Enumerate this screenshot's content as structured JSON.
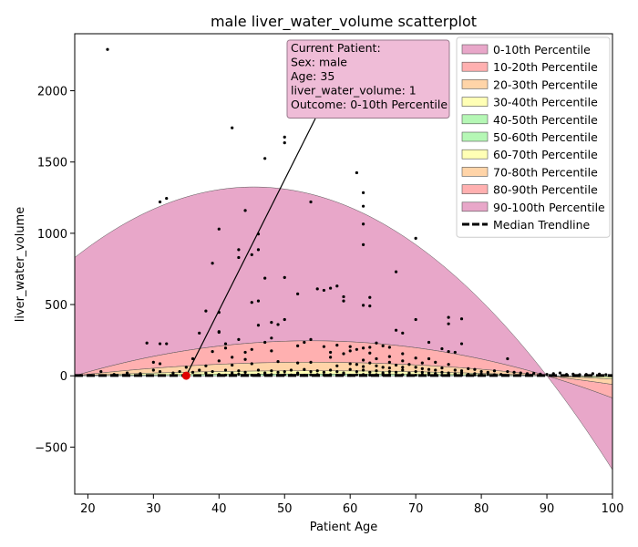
{
  "chart_data": {
    "type": "scatter",
    "title": "male liver_water_volume scatterplot",
    "xlabel": "Patient Age",
    "ylabel": "liver_water_volume",
    "xlim": [
      18,
      100
    ],
    "ylim": [
      -830,
      2400
    ],
    "xticks": [
      20,
      30,
      40,
      50,
      60,
      70,
      80,
      90,
      100
    ],
    "yticks": [
      -500,
      0,
      500,
      1000,
      1500,
      2000
    ],
    "ytick_labels": [
      "−500",
      "0",
      "500",
      "1000",
      "1500",
      "2000"
    ],
    "grid": false,
    "legend_position": "top-right",
    "percentile_bands": [
      {
        "name": "0-10th Percentile",
        "color": "#e8a7c9",
        "upper": {
          "x": [
            18,
            45,
            90,
            100
          ],
          "y": [
            0,
            0,
            0,
            0
          ]
        }
      },
      {
        "name": "10-20th Percentile",
        "color": "#ffb0b0"
      },
      {
        "name": "20-30th Percentile",
        "color": "#ffd4a8"
      },
      {
        "name": "30-40th Percentile",
        "color": "#ffffb5"
      },
      {
        "name": "40-50th Percentile",
        "color": "#b5f7b5"
      },
      {
        "name": "50-60th Percentile",
        "color": "#b5f7b5"
      },
      {
        "name": "60-70th Percentile",
        "color": "#ffffb5"
      },
      {
        "name": "70-80th Percentile",
        "color": "#ffd4a8"
      },
      {
        "name": "80-90th Percentile",
        "color": "#ffb0b0"
      },
      {
        "name": "90-100th Percentile",
        "color": "#e8a7c9"
      }
    ],
    "band_curves": {
      "p90": {
        "x": [
          18,
          45.5,
          90,
          100
        ],
        "y": [
          830,
          1325,
          0,
          -690
        ]
      },
      "p80": {
        "x": [
          18,
          52,
          90,
          100
        ],
        "y": [
          0,
          245,
          0,
          -150
        ]
      },
      "p60": {
        "x": [
          18,
          52,
          90,
          100
        ],
        "y": [
          0,
          95,
          0,
          -50
        ]
      },
      "p40": {
        "x": [
          18,
          52,
          90,
          100
        ],
        "y": [
          0,
          35,
          0,
          -20
        ]
      },
      "p20": {
        "x": [
          18,
          52,
          90,
          100
        ],
        "y": [
          0,
          12,
          0,
          -8
        ]
      }
    },
    "median_trendline": {
      "name": "Median Trendline",
      "x": [
        18,
        100
      ],
      "y": [
        2,
        2
      ]
    },
    "current_patient": {
      "x": 35,
      "y": 1,
      "label_lines": [
        "Current Patient:",
        "Sex: male",
        "Age: 35",
        "liver_water_volume: 1",
        "Outcome: 0-10th Percentile"
      ],
      "color": "#e00000"
    },
    "points": [
      [
        23,
        2290
      ],
      [
        42,
        1740
      ],
      [
        47,
        1525
      ],
      [
        50,
        1675
      ],
      [
        50,
        1635
      ],
      [
        61,
        1425
      ],
      [
        62,
        1285
      ],
      [
        31,
        1220
      ],
      [
        32,
        1245
      ],
      [
        54,
        1220
      ],
      [
        62,
        1190
      ],
      [
        44,
        1160
      ],
      [
        62,
        1065
      ],
      [
        40,
        1030
      ],
      [
        46,
        995
      ],
      [
        62,
        920
      ],
      [
        70,
        965
      ],
      [
        43,
        885
      ],
      [
        46,
        885
      ],
      [
        43,
        830
      ],
      [
        45,
        850
      ],
      [
        39,
        790
      ],
      [
        67,
        730
      ],
      [
        47,
        685
      ],
      [
        50,
        690
      ],
      [
        52,
        575
      ],
      [
        55,
        610
      ],
      [
        56,
        600
      ],
      [
        57,
        615
      ],
      [
        58,
        630
      ],
      [
        59,
        555
      ],
      [
        59,
        525
      ],
      [
        63,
        550
      ],
      [
        45,
        515
      ],
      [
        46,
        525
      ],
      [
        62,
        495
      ],
      [
        63,
        490
      ],
      [
        38,
        455
      ],
      [
        40,
        445
      ],
      [
        48,
        375
      ],
      [
        49,
        360
      ],
      [
        50,
        395
      ],
      [
        46,
        355
      ],
      [
        40,
        310
      ],
      [
        40,
        305
      ],
      [
        37,
        300
      ],
      [
        67,
        320
      ],
      [
        68,
        300
      ],
      [
        70,
        395
      ],
      [
        75,
        410
      ],
      [
        75,
        365
      ],
      [
        77,
        400
      ],
      [
        74,
        190
      ],
      [
        75,
        170
      ],
      [
        76,
        165
      ],
      [
        72,
        235
      ],
      [
        77,
        225
      ],
      [
        29,
        230
      ],
      [
        31,
        225
      ],
      [
        32,
        225
      ],
      [
        41,
        225
      ],
      [
        43,
        255
      ],
      [
        48,
        265
      ],
      [
        53,
        235
      ],
      [
        54,
        255
      ],
      [
        56,
        205
      ],
      [
        58,
        215
      ],
      [
        60,
        205
      ],
      [
        61,
        185
      ],
      [
        62,
        195
      ],
      [
        63,
        200
      ],
      [
        64,
        230
      ],
      [
        65,
        210
      ],
      [
        66,
        200
      ],
      [
        47,
        235
      ],
      [
        52,
        210
      ],
      [
        39,
        170
      ],
      [
        41,
        195
      ],
      [
        44,
        165
      ],
      [
        45,
        185
      ],
      [
        48,
        175
      ],
      [
        57,
        165
      ],
      [
        59,
        155
      ],
      [
        60,
        175
      ],
      [
        63,
        160
      ],
      [
        66,
        135
      ],
      [
        68,
        155
      ],
      [
        70,
        125
      ],
      [
        72,
        120
      ],
      [
        57,
        130
      ],
      [
        62,
        110
      ],
      [
        64,
        120
      ],
      [
        66,
        95
      ],
      [
        68,
        105
      ],
      [
        69,
        80
      ],
      [
        71,
        90
      ],
      [
        73,
        95
      ],
      [
        75,
        80
      ],
      [
        54,
        95
      ],
      [
        49,
        100
      ],
      [
        52,
        90
      ],
      [
        45,
        85
      ],
      [
        42,
        75
      ],
      [
        38,
        70
      ],
      [
        35,
        60
      ],
      [
        30,
        95
      ],
      [
        31,
        85
      ],
      [
        36,
        120
      ],
      [
        42,
        130
      ],
      [
        44,
        115
      ],
      [
        40,
        105
      ],
      [
        58,
        70
      ],
      [
        60,
        85
      ],
      [
        61,
        80
      ],
      [
        62,
        65
      ],
      [
        63,
        90
      ],
      [
        64,
        70
      ],
      [
        65,
        60
      ],
      [
        66,
        55
      ],
      [
        67,
        75
      ],
      [
        68,
        60
      ],
      [
        70,
        60
      ],
      [
        71,
        50
      ],
      [
        72,
        45
      ],
      [
        73,
        40
      ],
      [
        74,
        55
      ],
      [
        76,
        40
      ],
      [
        77,
        35
      ],
      [
        78,
        50
      ],
      [
        79,
        45
      ],
      [
        80,
        30
      ],
      [
        81,
        25
      ],
      [
        82,
        35
      ],
      [
        84,
        120
      ],
      [
        84,
        30
      ],
      [
        85,
        25
      ],
      [
        86,
        20
      ],
      [
        87,
        15
      ],
      [
        88,
        18
      ],
      [
        89,
        12
      ],
      [
        90,
        10
      ],
      [
        91,
        15
      ],
      [
        92,
        20
      ],
      [
        93,
        10
      ],
      [
        94,
        12
      ],
      [
        95,
        8
      ],
      [
        96,
        10
      ],
      [
        97,
        15
      ],
      [
        98,
        12
      ],
      [
        99,
        8
      ],
      [
        22,
        30
      ],
      [
        24,
        10
      ],
      [
        26,
        20
      ],
      [
        28,
        15
      ],
      [
        30,
        40
      ],
      [
        31,
        30
      ],
      [
        33,
        20
      ],
      [
        34,
        30
      ],
      [
        36,
        25
      ],
      [
        37,
        40
      ],
      [
        38,
        20
      ],
      [
        39,
        30
      ],
      [
        41,
        40
      ],
      [
        42,
        20
      ],
      [
        43,
        35
      ],
      [
        44,
        25
      ],
      [
        46,
        40
      ],
      [
        47,
        20
      ],
      [
        48,
        35
      ],
      [
        49,
        25
      ],
      [
        50,
        30
      ],
      [
        51,
        40
      ],
      [
        52,
        20
      ],
      [
        53,
        45
      ],
      [
        54,
        30
      ],
      [
        55,
        35
      ],
      [
        56,
        25
      ],
      [
        57,
        40
      ],
      [
        58,
        30
      ],
      [
        59,
        20
      ],
      [
        60,
        45
      ],
      [
        61,
        30
      ],
      [
        62,
        40
      ],
      [
        63,
        25
      ],
      [
        64,
        35
      ],
      [
        65,
        20
      ],
      [
        66,
        30
      ],
      [
        67,
        25
      ],
      [
        68,
        40
      ],
      [
        69,
        20
      ],
      [
        70,
        30
      ],
      [
        71,
        25
      ],
      [
        72,
        20
      ],
      [
        73,
        15
      ],
      [
        74,
        25
      ],
      [
        75,
        20
      ],
      [
        76,
        15
      ],
      [
        77,
        20
      ],
      [
        78,
        10
      ],
      [
        79,
        15
      ],
      [
        80,
        12
      ],
      [
        81,
        10
      ],
      [
        82,
        8
      ],
      [
        83,
        10
      ],
      [
        40,
        10
      ],
      [
        41,
        5
      ],
      [
        42,
        8
      ],
      [
        43,
        12
      ],
      [
        44,
        6
      ],
      [
        45,
        4
      ],
      [
        46,
        10
      ],
      [
        47,
        7
      ],
      [
        48,
        9
      ],
      [
        49,
        5
      ],
      [
        50,
        8
      ],
      [
        51,
        6
      ],
      [
        52,
        10
      ],
      [
        53,
        4
      ],
      [
        54,
        7
      ],
      [
        55,
        9
      ],
      [
        56,
        5
      ],
      [
        57,
        8
      ],
      [
        58,
        6
      ],
      [
        59,
        10
      ],
      [
        60,
        4
      ],
      [
        61,
        7
      ],
      [
        62,
        9
      ],
      [
        63,
        5
      ],
      [
        64,
        8
      ],
      [
        65,
        6
      ],
      [
        66,
        10
      ],
      [
        67,
        4
      ],
      [
        68,
        7
      ],
      [
        69,
        9
      ],
      [
        70,
        5
      ],
      [
        71,
        8
      ],
      [
        72,
        6
      ],
      [
        73,
        10
      ],
      [
        74,
        4
      ],
      [
        75,
        7
      ],
      [
        76,
        9
      ],
      [
        77,
        5
      ],
      [
        78,
        8
      ],
      [
        79,
        6
      ]
    ]
  }
}
